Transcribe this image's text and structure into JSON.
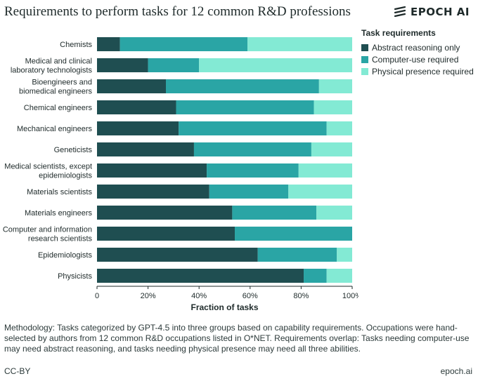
{
  "header": {
    "title": "Requirements to perform tasks for 12 common R&D professions",
    "brand": "EPOCH AI"
  },
  "colors": {
    "abstract": "#1f4e51",
    "computer": "#2aa5a5",
    "physical": "#83ead4"
  },
  "chart_data": {
    "type": "bar",
    "orientation": "horizontal",
    "stacked": true,
    "categories": [
      "Chemists",
      "Medical and clinical\nlaboratory technologists",
      "Bioengineers and\nbiomedical engineers",
      "Chemical engineers",
      "Mechanical engineers",
      "Geneticists",
      "Medical scientists, except\nepidemiologists",
      "Materials scientists",
      "Materials engineers",
      "Computer and information\nresearch scientists",
      "Epidemiologists",
      "Physicists"
    ],
    "series": [
      {
        "name": "Abstract reasoning only",
        "values": [
          0.09,
          0.2,
          0.27,
          0.31,
          0.32,
          0.38,
          0.43,
          0.44,
          0.53,
          0.54,
          0.63,
          0.81
        ]
      },
      {
        "name": "Computer-use required",
        "values": [
          0.5,
          0.2,
          0.6,
          0.54,
          0.58,
          0.46,
          0.36,
          0.31,
          0.33,
          0.46,
          0.31,
          0.09
        ]
      },
      {
        "name": "Physical presence required",
        "values": [
          0.41,
          0.6,
          0.13,
          0.15,
          0.1,
          0.16,
          0.21,
          0.25,
          0.14,
          0.0,
          0.06,
          0.1
        ]
      }
    ],
    "xlabel": "Fraction of tasks",
    "ylabel": "",
    "xlim": [
      0,
      1
    ],
    "xticks": [
      "0",
      "20%",
      "40%",
      "60%",
      "80%",
      "100%"
    ],
    "legend": {
      "title": "Task requirements",
      "position": "right"
    }
  },
  "footer": {
    "methodology": "Methodology: Tasks categorized by GPT-4.5 into three groups based on capability requirements. Occupations were hand-selected by authors from 12 common R&D occupations listed in O*NET. Requirements overlap: Tasks needing computer-use may need abstract reasoning, and tasks needing physical presence may need all three abilities.",
    "license": "CC-BY",
    "site": "epoch.ai"
  }
}
